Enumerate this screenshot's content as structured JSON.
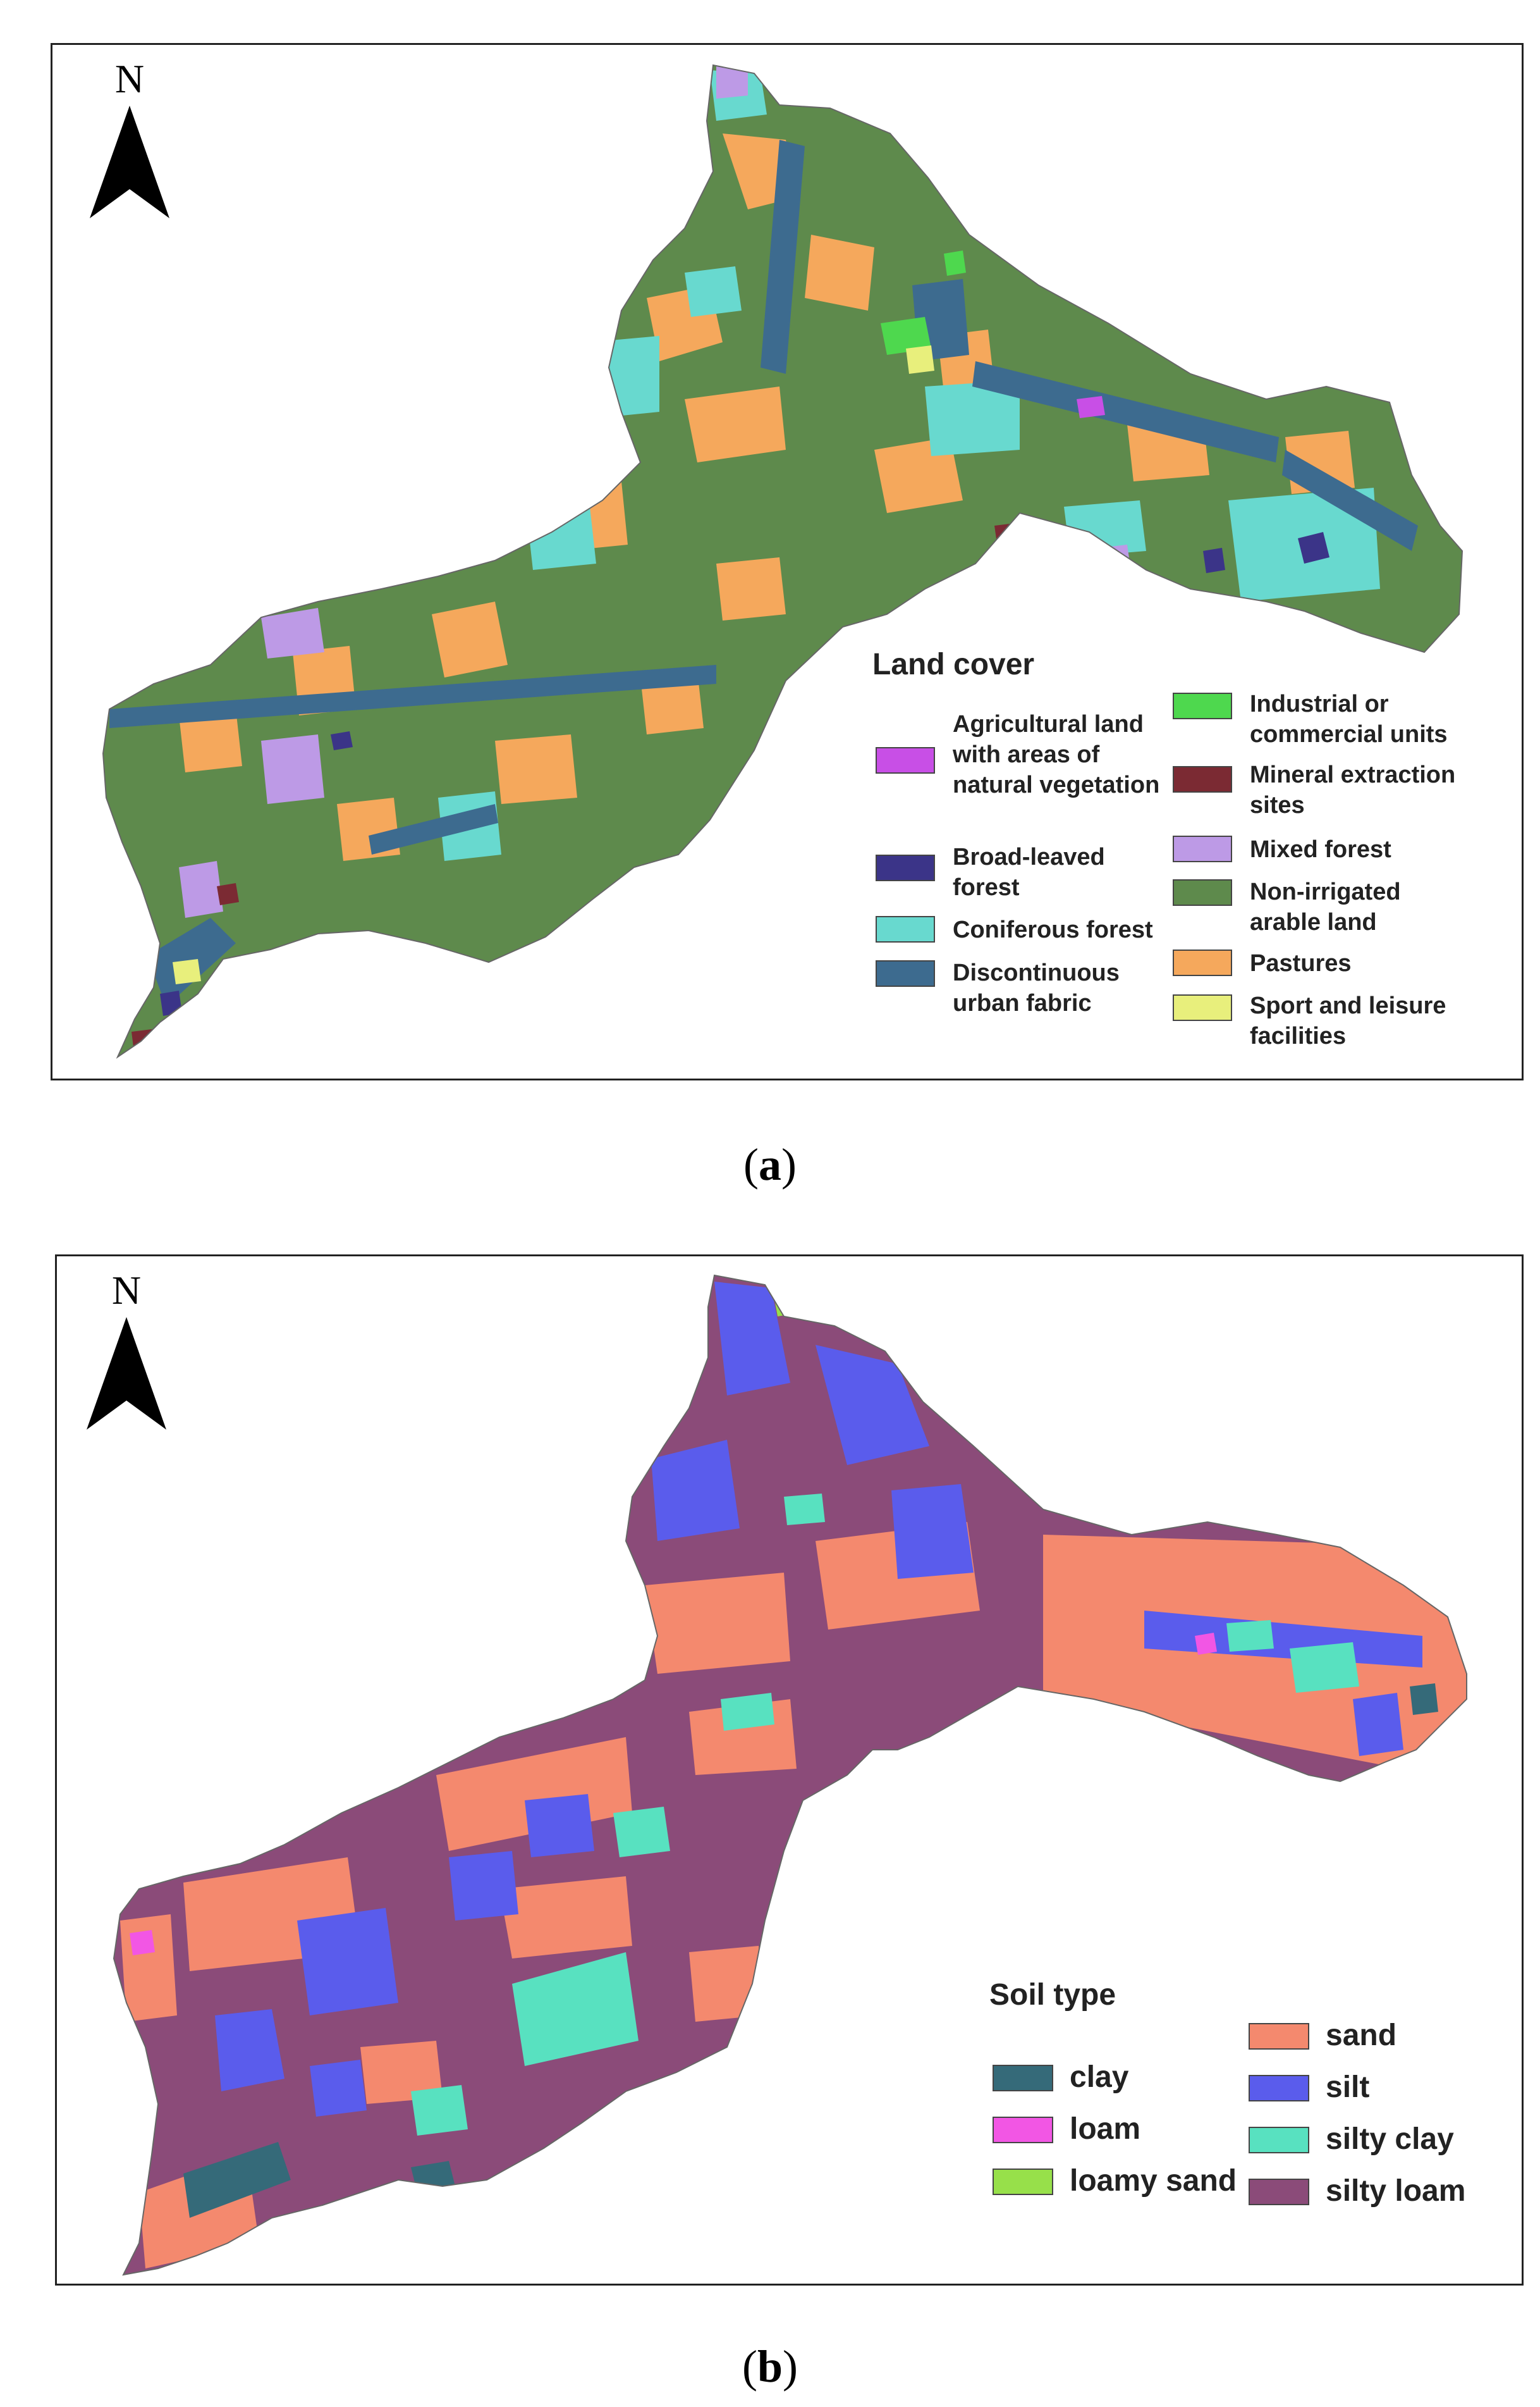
{
  "north_label": "N",
  "panel_a": {
    "caption_letter": "a",
    "legend_title": "Land cover",
    "legend_left": [
      {
        "label": "Agricultural land\nwith areas of\nnatural vegetation",
        "color": "#c84fe6"
      },
      {
        "label": "Broad-leaved\nforest",
        "color": "#3b3488"
      },
      {
        "label": "Coniferous forest",
        "color": "#68d9cf"
      },
      {
        "label": "Discontinuous\nurban fabric",
        "color": "#3d6b8f"
      }
    ],
    "legend_right": [
      {
        "label": "Industrial or\ncommercial units",
        "color": "#4ed84e"
      },
      {
        "label": "Mineral extraction\nsites",
        "color": "#7b2a33"
      },
      {
        "label": "Mixed forest",
        "color": "#bd9ae6"
      },
      {
        "label": "Non-irrigated\narable land",
        "color": "#5e8a4c"
      },
      {
        "label": "Pastures",
        "color": "#f5a85c"
      },
      {
        "label": "Sport and leisure\nfacilities",
        "color": "#e8ef7c"
      }
    ]
  },
  "panel_b": {
    "caption_letter": "b",
    "legend_title": "Soil type",
    "legend_left": [
      {
        "label": "clay",
        "color": "#356a79"
      },
      {
        "label": "loam",
        "color": "#f256e4"
      },
      {
        "label": "loamy sand",
        "color": "#97e04a"
      }
    ],
    "legend_right": [
      {
        "label": "sand",
        "color": "#f4896e"
      },
      {
        "label": "silt",
        "color": "#5a5cec"
      },
      {
        "label": "silty clay",
        "color": "#58e1c0"
      },
      {
        "label": "silty loam",
        "color": "#8b4b79"
      }
    ]
  }
}
